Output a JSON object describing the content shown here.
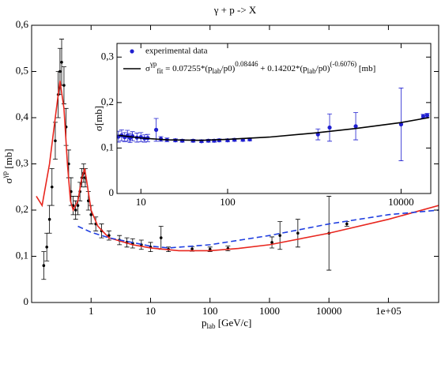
{
  "chart_data": [
    {
      "type": "scatter",
      "title": "γ + p -> X",
      "xlabel_parts": [
        "p",
        "lab",
        " [GeV/c]"
      ],
      "ylabel_parts": [
        "σ",
        "γp",
        " [mb]"
      ],
      "xscale": "log",
      "xlim": [
        0.1,
        700000
      ],
      "ylim": [
        0,
        0.6
      ],
      "xticks": [
        1,
        10,
        100,
        1000,
        10000,
        {
          "value": 100000,
          "label": "1e+05"
        }
      ],
      "yticks": [
        0,
        {
          "value": 0.1,
          "label": "0,1"
        },
        {
          "value": 0.2,
          "label": "0,2"
        },
        {
          "value": 0.3,
          "label": "0,3"
        },
        {
          "value": 0.4,
          "label": "0,4"
        },
        {
          "value": 0.5,
          "label": "0,5"
        },
        {
          "value": 0.6,
          "label": "0,6"
        }
      ],
      "series": [
        {
          "type": "scatter",
          "color": "#000000",
          "x": [
            0.16,
            0.18,
            0.2,
            0.22,
            0.25,
            0.28,
            0.3,
            0.32,
            0.35,
            0.38,
            0.42,
            0.46,
            0.5,
            0.55,
            0.6,
            0.65,
            0.7,
            0.75,
            0.8,
            0.9,
            1.0,
            1.2,
            1.5,
            2,
            3,
            4,
            5,
            7,
            10,
            15,
            20,
            50,
            100,
            200,
            1100,
            1500,
            3000,
            10000,
            20000
          ],
          "values": [
            0.08,
            0.12,
            0.18,
            0.25,
            0.35,
            0.45,
            0.5,
            0.52,
            0.47,
            0.38,
            0.3,
            0.24,
            0.21,
            0.2,
            0.21,
            0.24,
            0.27,
            0.28,
            0.27,
            0.22,
            0.19,
            0.17,
            0.155,
            0.145,
            0.135,
            0.13,
            0.128,
            0.125,
            0.12,
            0.14,
            0.115,
            0.116,
            0.115,
            0.117,
            0.13,
            0.145,
            0.15,
            0.15,
            0.17
          ],
          "errors": [
            0.03,
            0.03,
            0.03,
            0.04,
            0.04,
            0.05,
            0.05,
            0.05,
            0.04,
            0.04,
            0.03,
            0.03,
            0.02,
            0.02,
            0.02,
            0.02,
            0.02,
            0.02,
            0.02,
            0.02,
            0.02,
            0.015,
            0.015,
            0.01,
            0.01,
            0.01,
            0.01,
            0.01,
            0.01,
            0.025,
            0.005,
            0.005,
            0.005,
            0.005,
            0.012,
            0.03,
            0.03,
            0.08,
            0.005
          ]
        },
        {
          "type": "line",
          "style": "solid",
          "color": "#e8261e",
          "x": [
            0.12,
            0.15,
            0.2,
            0.25,
            0.3,
            0.35,
            0.4,
            0.45,
            0.5,
            0.6,
            0.7,
            0.78,
            0.85,
            1,
            1.3,
            2,
            5,
            10,
            30,
            100,
            300,
            1000,
            10000,
            100000,
            700000
          ],
          "values": [
            0.23,
            0.21,
            0.3,
            0.4,
            0.48,
            0.42,
            0.3,
            0.22,
            0.2,
            0.22,
            0.27,
            0.29,
            0.26,
            0.2,
            0.165,
            0.14,
            0.125,
            0.118,
            0.112,
            0.112,
            0.117,
            0.125,
            0.15,
            0.18,
            0.21
          ]
        },
        {
          "type": "line",
          "style": "dashed",
          "color": "#1f3ee0",
          "x": [
            0.6,
            1,
            2,
            10,
            20,
            100,
            1000,
            10000,
            100000,
            700000
          ],
          "values": [
            0.165,
            0.152,
            0.14,
            0.122,
            0.118,
            0.125,
            0.145,
            0.17,
            0.19,
            0.2
          ]
        }
      ]
    },
    {
      "type": "scatter",
      "ylabel": "σ[mb]",
      "xscale": "log",
      "xlim": [
        5.3,
        22000
      ],
      "ylim": [
        0,
        0.33
      ],
      "xticks": [
        10,
        100,
        10000
      ],
      "yticks": [
        0,
        {
          "value": 0.1,
          "label": "0,1"
        },
        {
          "value": 0.2,
          "label": "0,2"
        },
        {
          "value": 0.3,
          "label": "0,3"
        }
      ],
      "legend": "top-left",
      "series": [
        {
          "type": "scatter",
          "name": "experimental data",
          "color": "#2020d0",
          "x": [
            5.5,
            6,
            6.5,
            7,
            7.5,
            8,
            9,
            10,
            11,
            12,
            15,
            17,
            20,
            25,
            30,
            40,
            50,
            60,
            70,
            80,
            100,
            120,
            150,
            180,
            1100,
            1500,
            3000,
            10000,
            18000,
            20000
          ],
          "values": [
            0.125,
            0.128,
            0.124,
            0.127,
            0.122,
            0.126,
            0.123,
            0.124,
            0.121,
            0.122,
            0.14,
            0.12,
            0.118,
            0.117,
            0.116,
            0.116,
            0.115,
            0.116,
            0.116,
            0.117,
            0.117,
            0.118,
            0.118,
            0.119,
            0.13,
            0.145,
            0.148,
            0.152,
            0.17,
            0.172
          ],
          "errors": [
            0.012,
            0.012,
            0.01,
            0.012,
            0.01,
            0.01,
            0.01,
            0.01,
            0.008,
            0.008,
            0.025,
            0.005,
            0.004,
            0.003,
            0.003,
            0.003,
            0.003,
            0.003,
            0.003,
            0.003,
            0.003,
            0.003,
            0.003,
            0.003,
            0.012,
            0.03,
            0.03,
            0.08,
            0.004,
            0.004
          ]
        },
        {
          "type": "line",
          "style": "solid",
          "color": "#000000",
          "name_parts": [
            "σ",
            "γp",
            "fit",
            " = 0.07255*(p",
            "lab",
            "/p0)",
            "0.08446",
            " + 0.14202*(p",
            "lab",
            "/p0)",
            "(-0.6076)",
            " [mb]"
          ],
          "x": [
            5.5,
            10,
            20,
            50,
            100,
            300,
            1000,
            3000,
            10000,
            21000
          ],
          "values": [
            0.128,
            0.122,
            0.118,
            0.117,
            0.119,
            0.124,
            0.133,
            0.143,
            0.156,
            0.167
          ]
        }
      ]
    }
  ]
}
